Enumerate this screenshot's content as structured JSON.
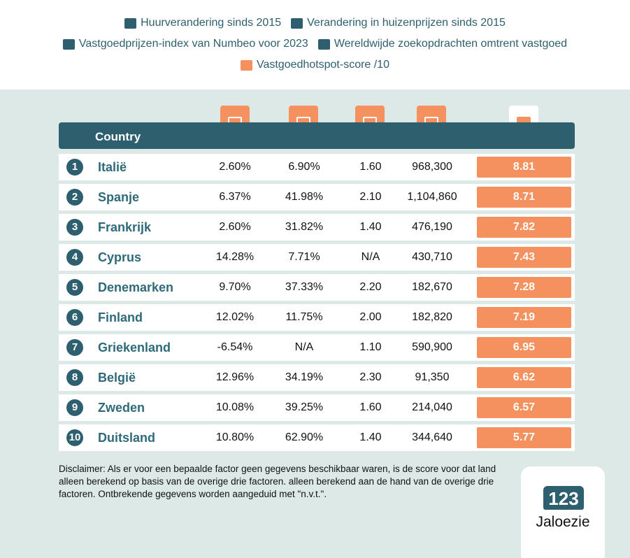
{
  "legend": [
    [
      "Huurverandering sinds 2015",
      "Verandering in huizenprijzen sinds 2015"
    ],
    [
      "Vastgoedprijzen-index van Numbeo voor 2023",
      "Wereldwijde zoekopdrachten omtrent vastgoed"
    ],
    [
      "Vastgoedhotspot-score /10"
    ]
  ],
  "table": {
    "header": "Country",
    "rows": [
      [
        "1",
        "Italië",
        "2.60%",
        "6.90%",
        "1.60",
        "968,300",
        "8.81"
      ],
      [
        "2",
        "Spanje",
        "6.37%",
        "41.98%",
        "2.10",
        "1,104,860",
        "8.71"
      ],
      [
        "3",
        "Frankrijk",
        "2.60%",
        "31.82%",
        "1.40",
        "476,190",
        "7.82"
      ],
      [
        "4",
        "Cyprus",
        "14.28%",
        "7.71%",
        "N/A",
        "430,710",
        "7.43"
      ],
      [
        "5",
        "Denemarken",
        "9.70%",
        "37.33%",
        "2.20",
        "182,670",
        "7.28"
      ],
      [
        "6",
        "Finland",
        "12.02%",
        "11.75%",
        "2.00",
        "182,820",
        "7.19"
      ],
      [
        "7",
        "Griekenland",
        "-6.54%",
        "N/A",
        "1.10",
        "590,900",
        "6.95"
      ],
      [
        "8",
        "België",
        "12.96%",
        "34.19%",
        "2.30",
        "91,350",
        "6.62"
      ],
      [
        "9",
        "Zweden",
        "10.08%",
        "39.25%",
        "1.60",
        "214,040",
        "6.57"
      ],
      [
        "10",
        "Duitsland",
        "10.80%",
        "62.90%",
        "1.40",
        "344,640",
        "5.77"
      ]
    ]
  },
  "disclaimer": "Disclaimer: Als er voor een bepaalde factor geen gegevens beschikbaar waren, is de score voor dat land alleen berekend op basis van de overige drie factoren. alleen berekend aan de hand van de overige drie factoren. Ontbrekende gegevens worden aangeduid met \"n.v.t.\".",
  "logo": {
    "number": "123",
    "name": "Jaloezie"
  }
}
